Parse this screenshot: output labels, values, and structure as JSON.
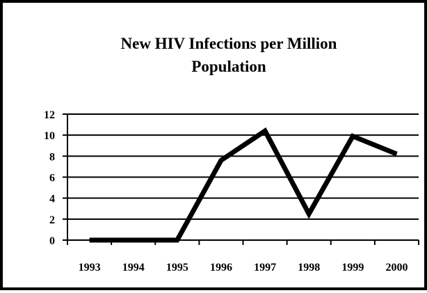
{
  "chart_data": {
    "type": "line",
    "title_lines": [
      "New HIV Infections per Million",
      "Population"
    ],
    "xlabel": "",
    "ylabel": "",
    "categories": [
      "1993",
      "1994",
      "1995",
      "1996",
      "1997",
      "1998",
      "1999",
      "2000"
    ],
    "series": [
      {
        "values": [
          0,
          0,
          0,
          7.6,
          10.4,
          2.5,
          9.9,
          8.2
        ]
      }
    ],
    "ylim": [
      0,
      12
    ],
    "yticks": [
      0,
      2,
      4,
      6,
      8,
      10,
      12
    ],
    "grid": true,
    "legend": "none",
    "colors": {
      "line": "#000000",
      "grid": "#000000",
      "border": "#000000",
      "background": "#ffffff"
    }
  }
}
